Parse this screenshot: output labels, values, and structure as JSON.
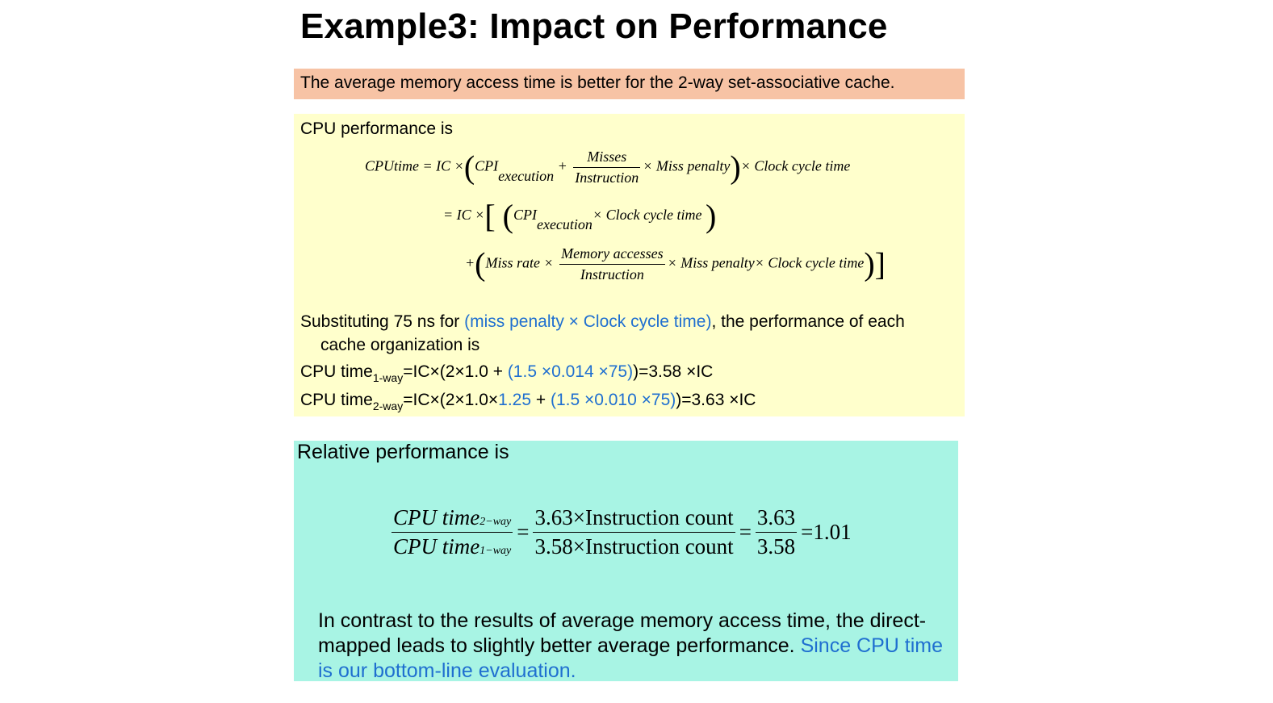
{
  "title": "Example3: Impact on Performance",
  "banner": "The average memory access time is better for the 2-way set-associative cache.",
  "perf_intro": "CPU performance is",
  "formula": {
    "cputime": "CPUtime",
    "ic": "IC",
    "cpi": "CPI",
    "execution": "execution",
    "misses": "Misses",
    "instruction": "Instruction",
    "miss_penalty": "Miss penalty",
    "clock_cycle_time": "Clock cycle time",
    "miss_rate": "Miss rate",
    "memory_accesses": "Memory accesses"
  },
  "substitution": {
    "prefix": "Substituting 75 ns for ",
    "highlight": "(miss penalty × Clock cycle time)",
    "suffix_1": ", the performance of each",
    "suffix_2": "cache organization is"
  },
  "cpu_1way": {
    "label": "CPU time",
    "sub": "1-way",
    "part1": "=IC×(2×1.0 + ",
    "part_blue": "(1.5 ×0.014 ×75)",
    "part2": ")=3.58 ×IC"
  },
  "cpu_2way": {
    "label": "CPU time",
    "sub": "2-way",
    "part1": "=IC×(2×1.0×",
    "part_blue1": "1.25",
    "part_mid": " + ",
    "part_blue2": "(1.5 ×0.010 ×75)",
    "part2": ")=3.63 ×IC"
  },
  "relative": {
    "intro": "Relative performance is",
    "cpu_time": "CPU time",
    "sub_2way": "2−way",
    "sub_1way": "1−way",
    "num2": "3.63×Instruction count",
    "den2": "3.58×Instruction count",
    "num3": "3.63",
    "den3": "3.58",
    "result": "=1.01"
  },
  "conclusion": {
    "text": "In contrast to the results of average memory access time, the direct-mapped leads to slightly better average performance. ",
    "blue": "Since CPU time is our bottom-line evaluation."
  },
  "colors": {
    "banner_bg": "#f7c3a5",
    "perf_bg": "#ffffcc",
    "relative_bg": "#a8f4e4",
    "highlight": "#1f6fd0"
  }
}
